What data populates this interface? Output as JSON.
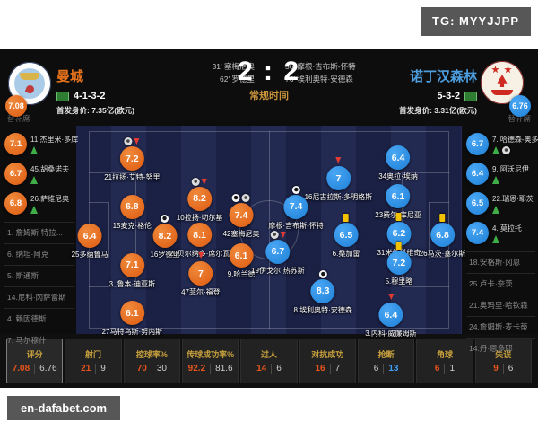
{
  "colors": {
    "home_accent": "#e8731c",
    "away_accent": "#2b98ee",
    "gold_label": "#c9a23e",
    "status_gold": "#c9953c",
    "panel_bg": "#0d0d0d",
    "pitch_stripe_dark": "#1b2145",
    "pitch_stripe_light": "#232a52",
    "yellow_card": "#f2c200",
    "sub_on_green": "#3fae49",
    "sub_off_red": "#e23b32"
  },
  "overlay": {
    "tg_badge": "TG: MYYJJPP",
    "watermark": "en-dafabet.com"
  },
  "header": {
    "home_name": "曼城",
    "home_formation": "4-1-3-2",
    "home_value": "首发身价: 7.35亿(欧元)",
    "home_rating": "7.08",
    "away_name": "诺丁汉森林",
    "away_formation": "5-3-2",
    "away_value": "首发身价: 3.31亿(欧元)",
    "away_rating": "6.76",
    "score": "2 : 2",
    "status": "常规时间",
    "home_scorers": [
      "31' 塞梅尼奥",
      "62' 罗德里"
    ],
    "away_scorers": [
      "56' 摩根·吉布斯-怀特",
      "76' 埃利奥特·安德森"
    ]
  },
  "bench": {
    "title_left": "替补席",
    "title_right": "替补席",
    "home_rated": [
      {
        "rating": "7.1",
        "name": "11.杰里米·多库",
        "icons": [
          "sub-on"
        ]
      },
      {
        "rating": "6.7",
        "name": "45.胡桑诺夫",
        "icons": [
          "sub-on"
        ]
      },
      {
        "rating": "6.8",
        "name": "26.萨维尼奥",
        "icons": [
          "sub-on"
        ]
      }
    ],
    "home_unused": [
      "1. 詹姆斯·特拉...",
      "6. 纳坦·阿克",
      "5. 斯通斯",
      "14.尼科·冈萨雷斯",
      "4. 赖因德斯",
      "7. 马尔穆什"
    ],
    "away_rated": [
      {
        "rating": "6.7",
        "name": "7. 哈德森-奥多伊",
        "icons": [
          "sub-on",
          "assist"
        ]
      },
      {
        "rating": "6.4",
        "name": "9. 阿沃尼伊",
        "icons": [
          "sub-on"
        ]
      },
      {
        "rating": "6.5",
        "name": "22.瑞恩·耶茨",
        "icons": [
          "sub-on"
        ]
      },
      {
        "rating": "7.4",
        "name": "4. 莫拉托",
        "icons": [
          "sub-on"
        ]
      }
    ],
    "away_unused": [
      "18.安格斯·冈恩",
      "25.卢卡·奈茨",
      "21.奥玛里·哈钦森",
      "24.詹姆斯·麦卡蒂",
      "14.丹·恩多耶"
    ]
  },
  "pitch": {
    "home": [
      {
        "rating": "6.4",
        "name": "25多纳鲁马",
        "icons": []
      },
      {
        "rating": "7.2",
        "name": "21拉扬·艾特-努里",
        "icons": [
          "assist",
          "sub-off"
        ]
      },
      {
        "rating": "6.8",
        "name": "15麦克·格伦",
        "icons": []
      },
      {
        "rating": "7.1",
        "name": "3. 鲁本·迪亚斯",
        "icons": []
      },
      {
        "rating": "6.1",
        "name": "27马特乌斯·努内斯",
        "icons": []
      },
      {
        "rating": "8.2",
        "name": "10拉扬·切尔基",
        "icons": [
          "assist",
          "sub-off"
        ]
      },
      {
        "rating": "8.2",
        "name": "16罗德里",
        "icons": [
          "goal"
        ]
      },
      {
        "rating": "8.1",
        "name": "20贝尔纳多·席尔瓦",
        "icons": []
      },
      {
        "rating": "7",
        "name": "47菲尔·福登",
        "icons": [
          "sub-off"
        ]
      },
      {
        "rating": "7.4",
        "name": "42塞梅尼奥",
        "icons": [
          "goal",
          "assist"
        ]
      },
      {
        "rating": "6.1",
        "name": "9.哈兰德",
        "icons": []
      }
    ],
    "away": [
      {
        "rating": "6.8",
        "name": "26马茨·塞尔斯",
        "icons": [
          "yellow"
        ]
      },
      {
        "rating": "6.4",
        "name": "34奥拉·埃纳",
        "icons": []
      },
      {
        "rating": "6.1",
        "name": "23费尔·库尼亚",
        "icons": []
      },
      {
        "rating": "6.2",
        "name": "31米伦科维奇",
        "icons": [
          "yellow"
        ]
      },
      {
        "rating": "7.2",
        "name": "5.穆里略",
        "icons": [
          "yellow"
        ]
      },
      {
        "rating": "6.4",
        "name": "3.内科·威廉姆斯",
        "icons": [
          "sub-off"
        ]
      },
      {
        "rating": "6.5",
        "name": "6.桑加雷",
        "icons": [
          "yellow"
        ]
      },
      {
        "rating": "7",
        "name": "16尼古拉斯·多明格斯",
        "icons": [
          "sub-off"
        ]
      },
      {
        "rating": "8.3",
        "name": "8.埃利奥特·安德森",
        "icons": [
          "goal"
        ]
      },
      {
        "rating": "7.4",
        "name": "摩根·吉布斯-怀特",
        "icons": [
          "goal"
        ]
      },
      {
        "rating": "6.7",
        "name": "19伊戈尔·热苏斯",
        "icons": [
          "assist",
          "sub-off"
        ]
      }
    ]
  },
  "stats": {
    "rows": [
      {
        "label": "评分",
        "home": "7.08",
        "away": "6.76"
      },
      {
        "label": "射门",
        "home": "21",
        "away": "9"
      },
      {
        "label": "控球率%",
        "home": "70",
        "away": "30"
      },
      {
        "label": "传球成功率%",
        "home": "92.2",
        "away": "81.6"
      },
      {
        "label": "过人",
        "home": "14",
        "away": "6"
      },
      {
        "label": "对抗成功",
        "home": "16",
        "away": "7"
      },
      {
        "label": "抢断",
        "home": "6",
        "away": "13"
      },
      {
        "label": "角球",
        "home": "6",
        "away": "1"
      },
      {
        "label": "失误",
        "home": "9",
        "away": "6"
      }
    ]
  }
}
